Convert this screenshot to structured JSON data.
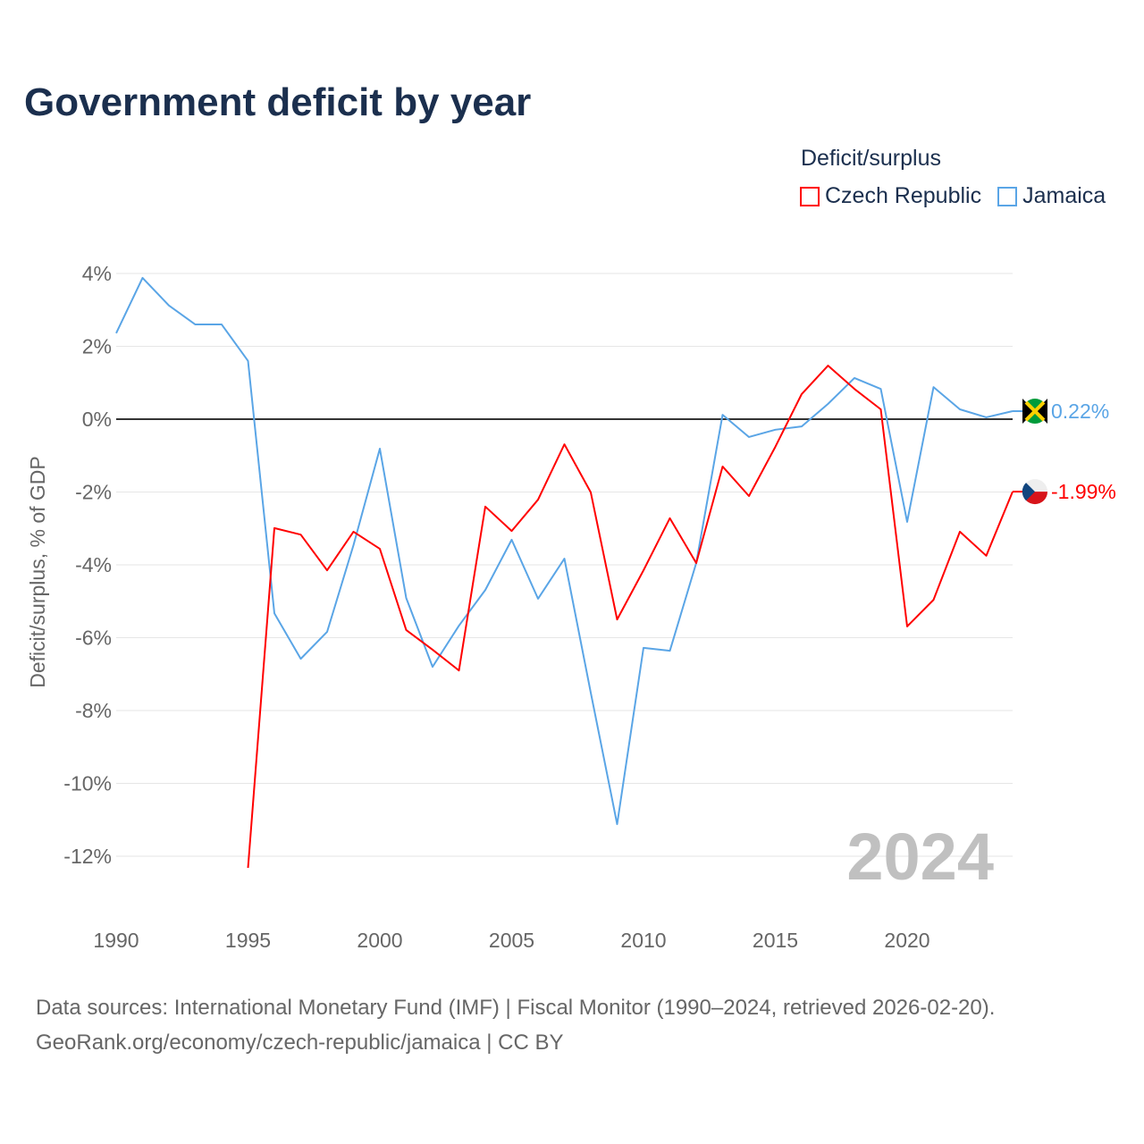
{
  "title": "Government deficit by year",
  "legend": {
    "title": "Deficit/surplus",
    "items": [
      {
        "label": "Czech Republic",
        "color": "#ff0000"
      },
      {
        "label": "Jamaica",
        "color": "#5aa5e6"
      }
    ]
  },
  "source": {
    "line1": "Data sources: International Monetary Fund (IMF) | Fiscal Monitor (1990–2024, retrieved 2026-02-20).",
    "line2": "GeoRank.org/economy/czech-republic/jamaica | CC BY"
  },
  "chart_data": {
    "type": "line",
    "title": "Government deficit by year",
    "xlabel": "",
    "ylabel": "Deficit/surplus, % of GDP",
    "xlim": [
      1990,
      2024
    ],
    "ylim": [
      -12.5,
      4.2
    ],
    "x_ticks": [
      "1990",
      "1995",
      "2000",
      "2005",
      "2010",
      "2015",
      "2020"
    ],
    "y_ticks": [
      {
        "v": 4,
        "label": "4%"
      },
      {
        "v": 2,
        "label": "2%"
      },
      {
        "v": 0,
        "label": "0%"
      },
      {
        "v": -2,
        "label": "-2%"
      },
      {
        "v": -4,
        "label": "-4%"
      },
      {
        "v": -6,
        "label": "-6%"
      },
      {
        "v": -8,
        "label": "-8%"
      },
      {
        "v": -10,
        "label": "-10%"
      },
      {
        "v": -12,
        "label": "-12%"
      }
    ],
    "year_watermark": "2024",
    "grid": true,
    "series": [
      {
        "name": "Czech Republic",
        "color": "#ff0000",
        "end_label": "-1.99%",
        "x": [
          1995,
          1996,
          1997,
          1998,
          1999,
          2000,
          2001,
          2002,
          2003,
          2004,
          2005,
          2006,
          2007,
          2008,
          2009,
          2010,
          2011,
          2012,
          2013,
          2014,
          2015,
          2016,
          2017,
          2018,
          2019,
          2020,
          2021,
          2022,
          2023,
          2024
        ],
        "values": [
          -12.32,
          -2.99,
          -3.17,
          -4.15,
          -3.09,
          -3.56,
          -5.79,
          -6.33,
          -6.9,
          -2.4,
          -3.07,
          -2.21,
          -0.69,
          -2.01,
          -5.5,
          -4.15,
          -2.72,
          -3.95,
          -1.3,
          -2.11,
          -0.76,
          0.69,
          1.47,
          0.83,
          0.27,
          -5.69,
          -4.96,
          -3.09,
          -3.75,
          -1.99
        ]
      },
      {
        "name": "Jamaica",
        "color": "#5aa5e6",
        "end_label": "0.22%",
        "x": [
          1990,
          1991,
          1992,
          1993,
          1994,
          1995,
          1996,
          1997,
          1998,
          1999,
          2000,
          2001,
          2002,
          2003,
          2004,
          2005,
          2006,
          2007,
          2008,
          2009,
          2010,
          2011,
          2012,
          2013,
          2014,
          2015,
          2016,
          2017,
          2018,
          2019,
          2020,
          2021,
          2022,
          2023,
          2024
        ],
        "values": [
          2.36,
          3.88,
          3.12,
          2.6,
          2.6,
          1.6,
          -5.33,
          -6.58,
          -5.84,
          -3.46,
          -0.81,
          -4.91,
          -6.8,
          -5.67,
          -4.69,
          -3.31,
          -4.93,
          -3.83,
          -7.51,
          -11.12,
          -6.28,
          -6.36,
          -3.95,
          0.12,
          -0.49,
          -0.29,
          -0.2,
          0.42,
          1.13,
          0.83,
          -2.82,
          0.88,
          0.27,
          0.05,
          0.22
        ]
      }
    ]
  }
}
